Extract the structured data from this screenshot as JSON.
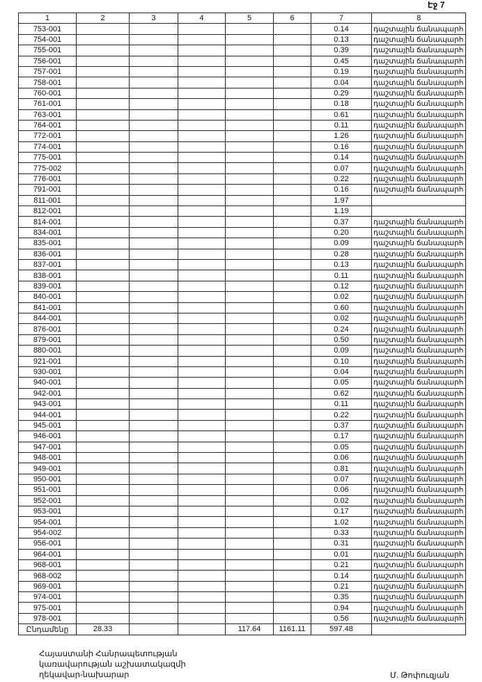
{
  "page_label": "Էջ 7",
  "headers": [
    "1",
    "2",
    "3",
    "4",
    "5",
    "6",
    "7",
    "8"
  ],
  "rows": [
    [
      "753-001",
      "0.14",
      "դաշտային ճանապարհ"
    ],
    [
      "754-001",
      "0.13",
      "դաշտային ճանապարհ"
    ],
    [
      "755-001",
      "0.39",
      "դաշտային ճանապարհ"
    ],
    [
      "756-001",
      "0.45",
      "դաշտային ճանապարհ"
    ],
    [
      "757-001",
      "0.19",
      "դաշտային ճանապարհ"
    ],
    [
      "758-001",
      "0.04",
      "դաշտային ճանապարհ"
    ],
    [
      "760-001",
      "0.29",
      "դաշտային ճանապարհ"
    ],
    [
      "761-001",
      "0.18",
      "դաշտային ճանապարհ"
    ],
    [
      "763-001",
      "0.61",
      "դաշտային ճանապարհ"
    ],
    [
      "764-001",
      "0.11",
      "դաշտային ճանապարհ"
    ],
    [
      "772-001",
      "1.26",
      "դաշտային ճանապարհ"
    ],
    [
      "774-001",
      "0.16",
      "դաշտային ճանապարհ"
    ],
    [
      "775-001",
      "0.14",
      "դաշտային ճանապարհ"
    ],
    [
      "775-002",
      "0.07",
      "դաշտային ճանապարհ"
    ],
    [
      "776-001",
      "0.22",
      "դաշտային ճանապարհ"
    ],
    [
      "791-001",
      "0.16",
      "դաշտային ճանապարհ"
    ],
    [
      "811-001",
      "1.97",
      ""
    ],
    [
      "812-001",
      "1.19",
      ""
    ],
    [
      "814-001",
      "0.37",
      "դաշտային ճանապարհ"
    ],
    [
      "834-001",
      "0.20",
      "դաշտային ճանապարհ"
    ],
    [
      "835-001",
      "0.09",
      "դաշտային ճանապարհ"
    ],
    [
      "836-001",
      "0.28",
      "դաշտային ճանապարհ"
    ],
    [
      "837-001",
      "0.13",
      "դաշտային ճանապարհ"
    ],
    [
      "838-001",
      "0.11",
      "դաշտային ճանապարհ"
    ],
    [
      "839-001",
      "0.12",
      "դաշտային ճանապարհ"
    ],
    [
      "840-001",
      "0.02",
      "դաշտային ճանապարհ"
    ],
    [
      "841-001",
      "0.60",
      "դաշտային ճանապարհ"
    ],
    [
      "844-001",
      "0.02",
      "դաշտային ճանապարհ"
    ],
    [
      "876-001",
      "0.24",
      "դաշտային ճանապարհ"
    ],
    [
      "879-001",
      "0.50",
      "դաշտային ճանապարհ"
    ],
    [
      "880-001",
      "0.09",
      "դաշտային ճանապարհ"
    ],
    [
      "921-001",
      "0.10",
      "դաշտային ճանապարհ"
    ],
    [
      "930-001",
      "0.04",
      "դաշտային ճանապարհ"
    ],
    [
      "940-001",
      "0.05",
      "դաշտային ճանապարհ"
    ],
    [
      "942-001",
      "0.62",
      "դաշտային ճանապարհ"
    ],
    [
      "943-001",
      "0.11",
      "դաշտային ճանապարհ"
    ],
    [
      "944-001",
      "0.22",
      "դաշտային ճանապարհ"
    ],
    [
      "945-001",
      "0.37",
      "դաշտային ճանապարհ"
    ],
    [
      "946-001",
      "0.17",
      "դաշտային ճանապարհ"
    ],
    [
      "947-001",
      "0.05",
      "դաշտային ճանապարհ"
    ],
    [
      "948-001",
      "0.06",
      "դաշտային ճանապարհ"
    ],
    [
      "949-001",
      "0.81",
      "դաշտային ճանապարհ"
    ],
    [
      "950-001",
      "0.07",
      "դաշտային ճանապարհ"
    ],
    [
      "951-001",
      "0.06",
      "դաշտային ճանապարհ"
    ],
    [
      "952-001",
      "0.02",
      "դաշտային ճանապարհ"
    ],
    [
      "953-001",
      "0.17",
      "դաշտային ճանապարհ"
    ],
    [
      "954-001",
      "1.02",
      "դաշտային ճանապարհ"
    ],
    [
      "954-002",
      "0.33",
      "դաշտային ճանապարհ"
    ],
    [
      "956-001",
      "0.31",
      "դաշտային ճանապարհ"
    ],
    [
      "964-001",
      "0.01",
      "դաշտային ճանապարհ"
    ],
    [
      "968-001",
      "0.21",
      "դաշտային ճանապարհ"
    ],
    [
      "968-002",
      "0.14",
      "դաշտային ճանապարհ"
    ],
    [
      "969-001",
      "0.21",
      "դաշտային ճանապարհ"
    ],
    [
      "974-001",
      "0.35",
      "դաշտային ճանապարհ"
    ],
    [
      "975-001",
      "0.94",
      "դաշտային ճանապարհ"
    ],
    [
      "978-001",
      "0.56",
      "դաշտային ճանապարհ"
    ]
  ],
  "total": {
    "label": "Ընդամենը",
    "c2": "28.33",
    "c3": "",
    "c4": "",
    "c5": "117.64",
    "c6": "1161.11",
    "c7": "597.48",
    "c8": ""
  },
  "footer": {
    "line1": "Հայաստանի Հանրապետության",
    "line2": "կառավարության աշխատակազմի",
    "line3": "ղեկավար-նախարար",
    "signatory": "Մ. Թոփուզյան"
  }
}
